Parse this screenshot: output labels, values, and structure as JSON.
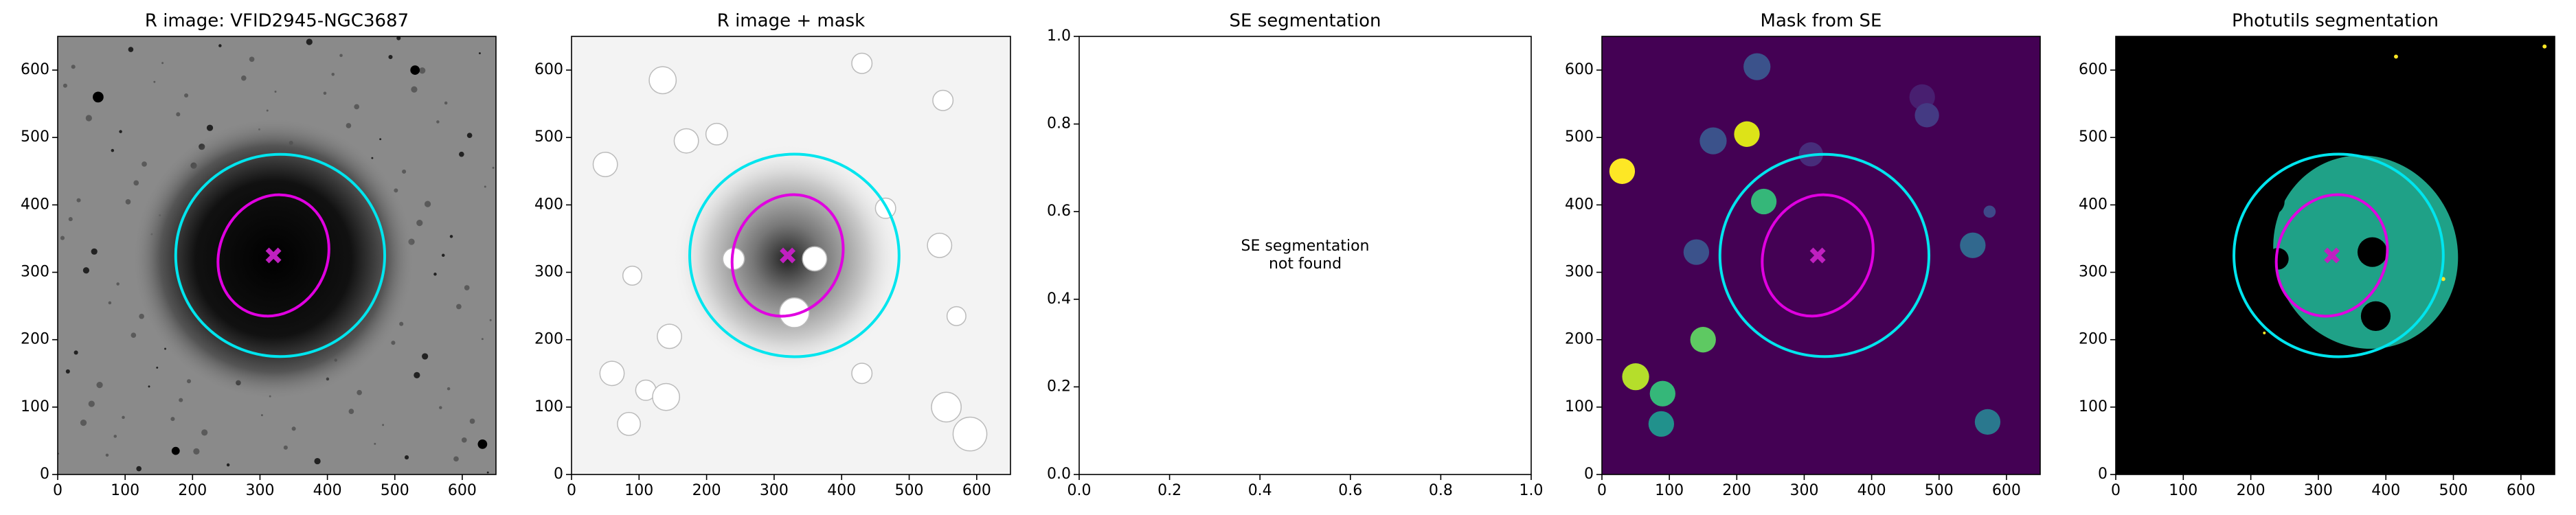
{
  "chart_data": [
    {
      "type": "image",
      "title": "R image: VFID2945-NGC3687",
      "xlim": [
        0,
        650
      ],
      "ylim": [
        0,
        650
      ],
      "xticks": [
        0,
        100,
        200,
        300,
        400,
        500,
        600
      ],
      "yticks": [
        0,
        100,
        200,
        300,
        400,
        500,
        600
      ]
    },
    {
      "type": "image",
      "title": "R image + mask",
      "xlim": [
        0,
        650
      ],
      "ylim": [
        0,
        650
      ],
      "xticks": [
        0,
        100,
        200,
        300,
        400,
        500,
        600
      ],
      "yticks": [
        0,
        100,
        200,
        300,
        400,
        500,
        600
      ]
    },
    {
      "type": "empty",
      "title": "SE segmentation",
      "annotation": [
        "SE segmentation",
        "not found"
      ],
      "xlim": [
        0,
        1
      ],
      "ylim": [
        0,
        1
      ],
      "xticks": [
        {
          "value": 0,
          "label": "0.0"
        },
        {
          "value": 0.2,
          "label": "0.2"
        },
        {
          "value": 0.4,
          "label": "0.4"
        },
        {
          "value": 0.6,
          "label": "0.6"
        },
        {
          "value": 0.8,
          "label": "0.8"
        },
        {
          "value": 1,
          "label": "1.0"
        }
      ],
      "yticks": [
        {
          "value": 0,
          "label": "0.0"
        },
        {
          "value": 0.2,
          "label": "0.2"
        },
        {
          "value": 0.4,
          "label": "0.4"
        },
        {
          "value": 0.6,
          "label": "0.6"
        },
        {
          "value": 0.8,
          "label": "0.8"
        },
        {
          "value": 1,
          "label": "1.0"
        }
      ]
    },
    {
      "type": "image",
      "title": "Mask from SE",
      "xlim": [
        0,
        650
      ],
      "ylim": [
        0,
        650
      ],
      "xticks": [
        0,
        100,
        200,
        300,
        400,
        500,
        600
      ],
      "yticks": [
        0,
        100,
        200,
        300,
        400,
        500,
        600
      ]
    },
    {
      "type": "image",
      "title": "Photutils segmentation",
      "xlim": [
        0,
        650
      ],
      "ylim": [
        0,
        650
      ],
      "xticks": [
        0,
        100,
        200,
        300,
        400,
        500,
        600
      ],
      "yticks": [
        0,
        100,
        200,
        300,
        400,
        500,
        600
      ]
    }
  ]
}
